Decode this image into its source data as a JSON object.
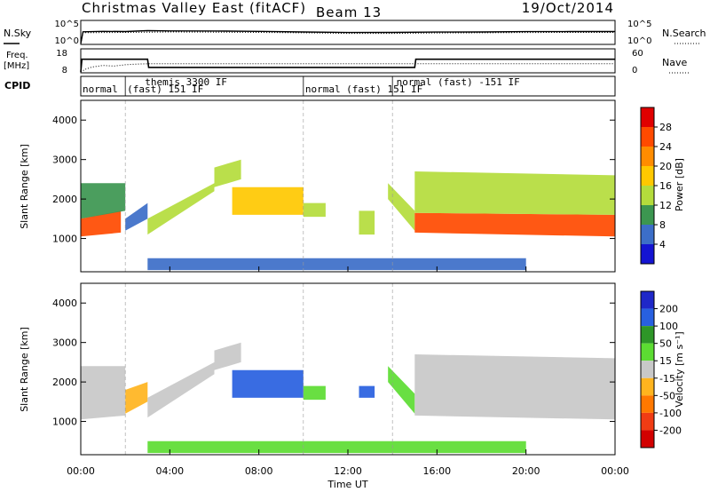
{
  "header": {
    "title": "Christmas Valley East (fitACF)",
    "beam": "Beam 13",
    "date": "19/Oct/2014"
  },
  "noise_panel": {
    "left_label": "N.Sky",
    "right_label": "N.Search",
    "left_ticks": [
      "10^5",
      "10^0"
    ],
    "right_ticks": [
      "10^5",
      "10^0"
    ]
  },
  "freq_panel": {
    "left_label_line1": "Freq.",
    "left_label_line2": "[MHz]",
    "right_label": "Nave",
    "left_ticks": [
      "18",
      "8"
    ],
    "right_ticks": [
      "60",
      "0"
    ]
  },
  "cpid": {
    "label": "CPID",
    "entries": [
      {
        "text": "normal",
        "row": 2,
        "start_hour": 0.0
      },
      {
        "text": "themis 3300 IF",
        "row": 1,
        "start_hour": 2.8
      },
      {
        "text": "(fast) 151 IF",
        "row": 2,
        "start_hour": 2.0
      },
      {
        "text": "normal (fast) 151 IF",
        "row": 2,
        "start_hour": 10.0
      },
      {
        "text": "normal (fast) -151 IF",
        "row": 1,
        "start_hour": 14.1
      }
    ],
    "boundaries_hours": [
      2.0,
      10.0,
      14.0
    ]
  },
  "power_colorbar": {
    "label": "Power [dB]",
    "ticks": [
      "28",
      "24",
      "20",
      "16",
      "12",
      "8",
      "4"
    ],
    "colors": [
      "#e00000",
      "#ff4a00",
      "#ff8c00",
      "#ffc800",
      "#b4dc3c",
      "#3c9650",
      "#3c6ec8",
      "#1414d2"
    ]
  },
  "velocity_colorbar": {
    "label": "Velocity [m s⁻¹]",
    "ticks": [
      "200",
      "100",
      "50",
      "15",
      "-15",
      "-50",
      "-100",
      "-200"
    ],
    "colors": [
      "#1f28c8",
      "#2860e0",
      "#2e9628",
      "#5cdc32",
      "#c8c8c8",
      "#ffb41e",
      "#ff7800",
      "#f03c14",
      "#d20000"
    ]
  },
  "chart_data": [
    {
      "type": "line",
      "title": "Christmas Valley East (fitACF)",
      "series": [
        {
          "name": "N.Sky",
          "x": [
            0,
            0.1,
            1,
            2,
            3,
            4,
            6,
            8,
            10,
            12,
            14,
            16,
            18,
            20,
            22,
            24
          ],
          "values": [
            1,
            1000,
            1300,
            1200,
            2000,
            1700,
            1600,
            1300,
            900,
            650,
            700,
            850,
            900,
            1100,
            1200,
            1200
          ]
        },
        {
          "name": "N.Search",
          "x": [
            0,
            0.1,
            2,
            4,
            6,
            8,
            10,
            12,
            14,
            16,
            18,
            20,
            22,
            24
          ],
          "values": [
            1,
            600,
            700,
            900,
            800,
            700,
            550,
            400,
            400,
            500,
            550,
            650,
            700,
            700
          ]
        }
      ],
      "xlim": [
        0,
        24
      ],
      "ylim": [
        1,
        100000
      ],
      "yscale": "log"
    },
    {
      "type": "line",
      "series": [
        {
          "name": "Freq.",
          "x": [
            0,
            0.05,
            3.0,
            3.05,
            15.0,
            15.05,
            24
          ],
          "values": [
            8,
            14.5,
            14.5,
            10.3,
            10.3,
            14.5,
            14.5
          ]
        },
        {
          "name": "Nave",
          "x": [
            0,
            0.2,
            0.5,
            1,
            1.5,
            2,
            2.5,
            3,
            24
          ],
          "values": [
            0,
            8,
            15,
            20,
            18,
            22,
            24,
            25,
            25
          ]
        }
      ],
      "xlim": [
        0,
        24
      ],
      "ylim": [
        8,
        18
      ],
      "y2lim": [
        0,
        60
      ]
    },
    {
      "type": "heatmap",
      "ylabel": "Slant Range [km]",
      "xlim": [
        0,
        24
      ],
      "ylim": [
        180,
        4500
      ],
      "yticks": [
        1000,
        2000,
        3000,
        4000
      ],
      "colorbar": "Power [dB]",
      "regions": [
        {
          "t0": 0.0,
          "t1": 1.8,
          "r_lo_start": 1050,
          "r_lo_end": 1150,
          "r_hi_start": 1500,
          "r_hi_end": 1700,
          "value": 24
        },
        {
          "t0": 0.0,
          "t1": 2.0,
          "r_lo_start": 1500,
          "r_lo_end": 1700,
          "r_hi_start": 2400,
          "r_hi_end": 2400,
          "value": 10
        },
        {
          "t0": 2.0,
          "t1": 3.0,
          "r_lo_start": 1200,
          "r_lo_end": 1500,
          "r_hi_start": 1500,
          "r_hi_end": 1900,
          "value": 6
        },
        {
          "t0": 3.0,
          "t1": 6.0,
          "r_lo_start": 1100,
          "r_lo_end": 2200,
          "r_hi_start": 1500,
          "r_hi_end": 2400,
          "value": 14
        },
        {
          "t0": 6.0,
          "t1": 7.2,
          "r_lo_start": 2300,
          "r_lo_end": 2500,
          "r_hi_start": 2800,
          "r_hi_end": 3000,
          "value": 12
        },
        {
          "t0": 6.8,
          "t1": 10.0,
          "r_lo_start": 1600,
          "r_lo_end": 1600,
          "r_hi_start": 2300,
          "r_hi_end": 2300,
          "value": 18
        },
        {
          "t0": 10.0,
          "t1": 11.0,
          "r_lo_start": 1550,
          "r_lo_end": 1550,
          "r_hi_start": 1900,
          "r_hi_end": 1900,
          "value": 14
        },
        {
          "t0": 12.5,
          "t1": 13.2,
          "r_lo_start": 1100,
          "r_lo_end": 1100,
          "r_hi_start": 1700,
          "r_hi_end": 1700,
          "value": 12
        },
        {
          "t0": 13.8,
          "t1": 15.0,
          "r_lo_start": 2000,
          "r_lo_end": 1200,
          "r_hi_start": 2400,
          "r_hi_end": 1700,
          "value": 14
        },
        {
          "t0": 15.0,
          "t1": 24.0,
          "r_lo_start": 1150,
          "r_lo_end": 1050,
          "r_hi_start": 1650,
          "r_hi_end": 1600,
          "value": 26
        },
        {
          "t0": 15.0,
          "t1": 24.0,
          "r_lo_start": 1650,
          "r_lo_end": 1600,
          "r_hi_start": 2700,
          "r_hi_end": 2600,
          "value": 12
        },
        {
          "t0": 3.0,
          "t1": 20.0,
          "r_lo_start": 200,
          "r_lo_end": 200,
          "r_hi_start": 500,
          "r_hi_end": 500,
          "value": 6
        }
      ]
    },
    {
      "type": "heatmap",
      "xlabel": "Time UT",
      "ylabel": "Slant Range [km]",
      "xlim": [
        0,
        24
      ],
      "ylim": [
        180,
        4500
      ],
      "yticks": [
        1000,
        2000,
        3000,
        4000
      ],
      "xticks": [
        "00:00",
        "04:00",
        "08:00",
        "12:00",
        "16:00",
        "20:00",
        "00:00"
      ],
      "colorbar": "Velocity [m s⁻¹]",
      "regions": [
        {
          "t0": 0.0,
          "t1": 2.0,
          "r_lo_start": 1050,
          "r_lo_end": 1150,
          "r_hi_start": 2400,
          "r_hi_end": 2400,
          "value": 0
        },
        {
          "t0": 2.0,
          "t1": 3.0,
          "r_lo_start": 1200,
          "r_lo_end": 1500,
          "r_hi_start": 1800,
          "r_hi_end": 2000,
          "value": -30
        },
        {
          "t0": 3.0,
          "t1": 6.0,
          "r_lo_start": 1100,
          "r_lo_end": 2200,
          "r_hi_start": 1600,
          "r_hi_end": 2500,
          "value": 0
        },
        {
          "t0": 6.0,
          "t1": 7.2,
          "r_lo_start": 2300,
          "r_lo_end": 2500,
          "r_hi_start": 2800,
          "r_hi_end": 3000,
          "value": 0
        },
        {
          "t0": 6.8,
          "t1": 10.0,
          "r_lo_start": 1600,
          "r_lo_end": 1600,
          "r_hi_start": 2300,
          "r_hi_end": 2300,
          "value": 180
        },
        {
          "t0": 10.0,
          "t1": 11.0,
          "r_lo_start": 1550,
          "r_lo_end": 1550,
          "r_hi_start": 1900,
          "r_hi_end": 1900,
          "value": 30
        },
        {
          "t0": 12.5,
          "t1": 13.2,
          "r_lo_start": 1600,
          "r_lo_end": 1600,
          "r_hi_start": 1900,
          "r_hi_end": 1900,
          "value": 150
        },
        {
          "t0": 13.8,
          "t1": 15.0,
          "r_lo_start": 2000,
          "r_lo_end": 1200,
          "r_hi_start": 2400,
          "r_hi_end": 1700,
          "value": 30
        },
        {
          "t0": 15.0,
          "t1": 24.0,
          "r_lo_start": 1150,
          "r_lo_end": 1050,
          "r_hi_start": 2700,
          "r_hi_end": 2600,
          "value": 0
        },
        {
          "t0": 3.0,
          "t1": 20.0,
          "r_lo_start": 200,
          "r_lo_end": 200,
          "r_hi_start": 500,
          "r_hi_end": 500,
          "value": 30
        }
      ]
    }
  ]
}
